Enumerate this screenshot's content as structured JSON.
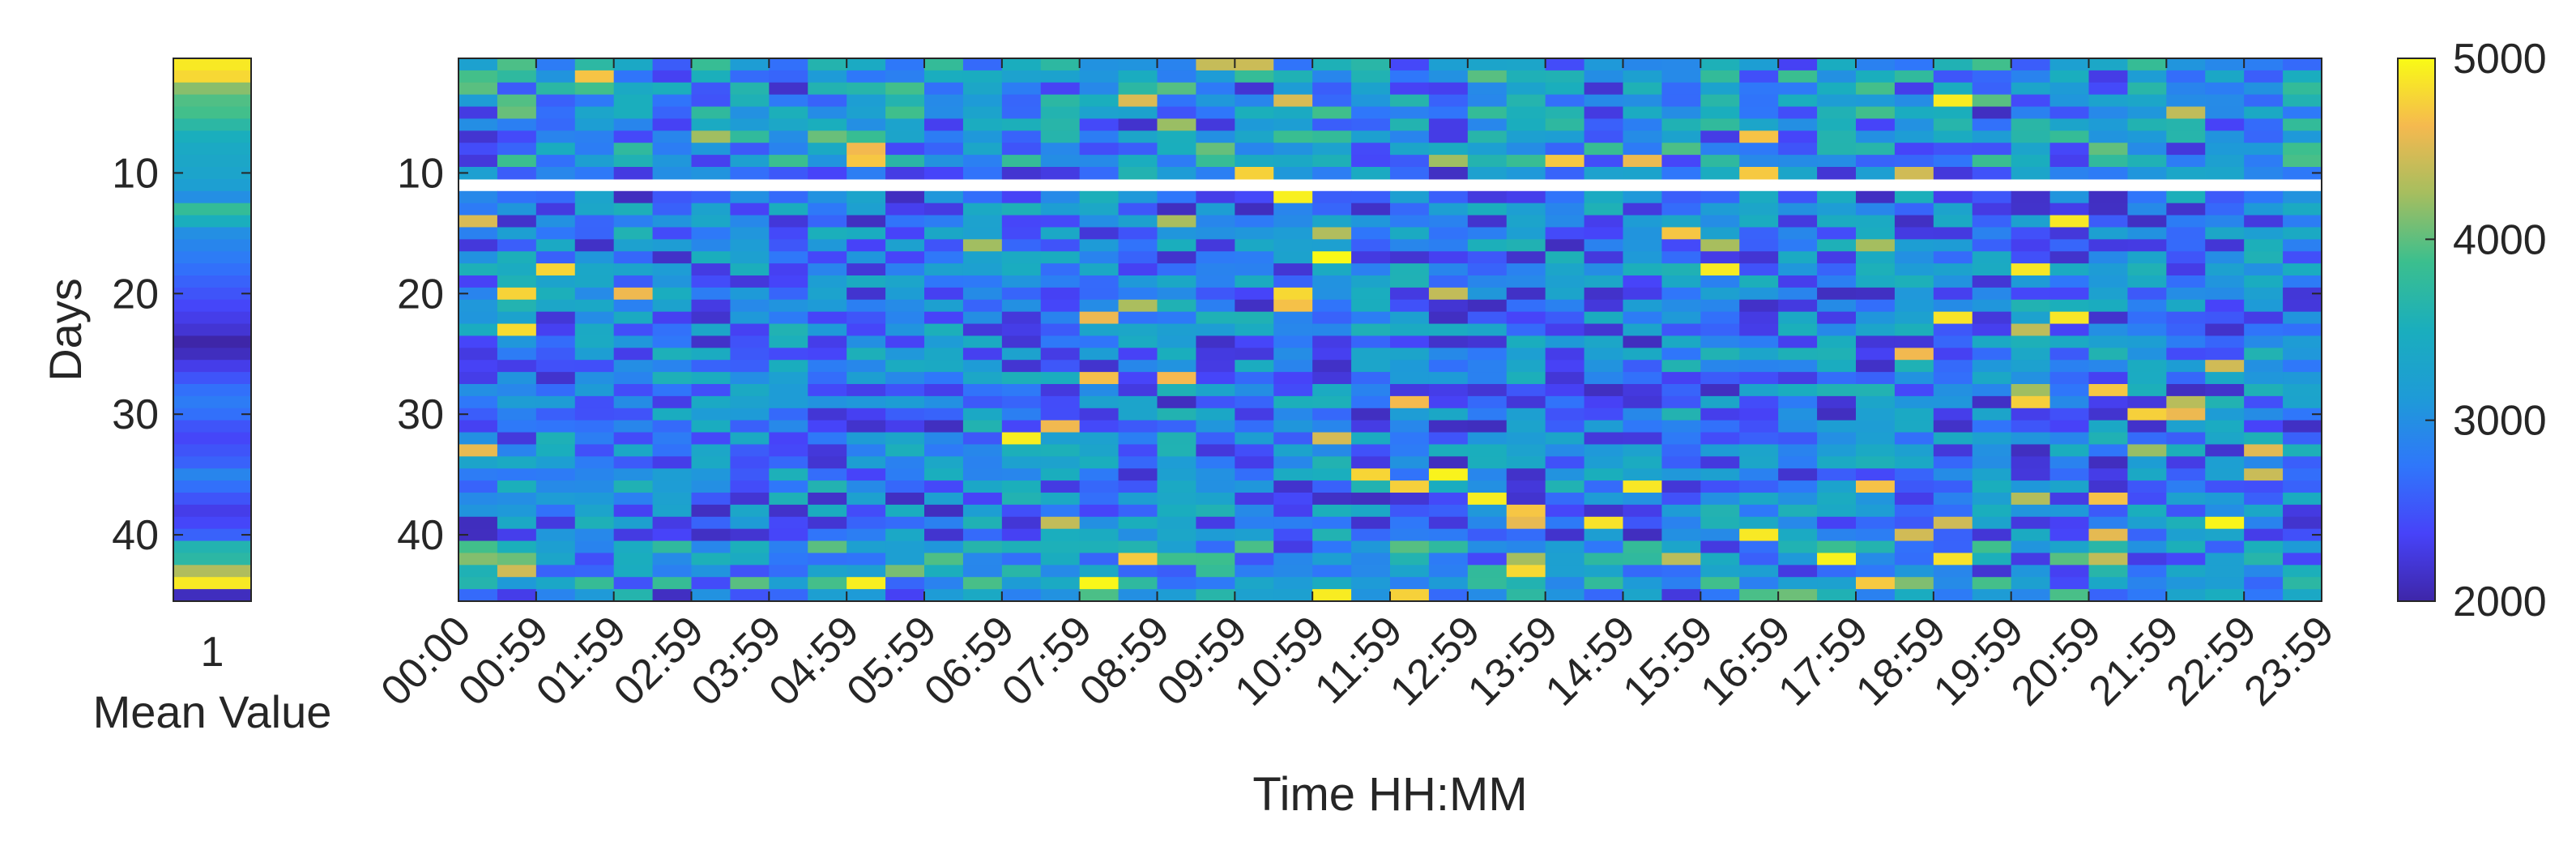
{
  "chart_data": [
    {
      "type": "heatmap",
      "title": "",
      "xlabel": "Mean Value",
      "ylabel": "Days",
      "x_tick_labels": [
        "1"
      ],
      "y_ticks": [
        10,
        20,
        30,
        40
      ],
      "y_range": [
        1,
        45
      ],
      "column_mean_values_estimate": [
        4900,
        4800,
        4150,
        3950,
        3900,
        3700,
        3500,
        3400,
        3350,
        3300,
        3200,
        3000,
        3800,
        3500,
        3000,
        2900,
        2800,
        2700,
        2600,
        2500,
        2400,
        2300,
        2200,
        2000,
        2100,
        2300,
        2500,
        2700,
        2800,
        2700,
        2500,
        2400,
        2500,
        2600,
        2900,
        2700,
        2500,
        2300,
        2400,
        2600,
        3600,
        3700,
        4300,
        4900,
        2100
      ],
      "colormap": [
        "#3e26a8",
        "#4743f9",
        "#2f77fa",
        "#1e9bd7",
        "#1aaebd",
        "#3bbf8e",
        "#a5be5f",
        "#f5b94f",
        "#f9fb15"
      ]
    },
    {
      "type": "heatmap",
      "title": "",
      "xlabel": "Time HH:MM",
      "ylabel": "",
      "x_tick_labels": [
        "00:00",
        "00:59",
        "01:59",
        "02:59",
        "03:59",
        "04:59",
        "05:59",
        "06:59",
        "07:59",
        "08:59",
        "09:59",
        "10:59",
        "11:59",
        "12:59",
        "13:59",
        "14:59",
        "15:59",
        "16:59",
        "17:59",
        "18:59",
        "19:59",
        "20:59",
        "21:59",
        "22:59",
        "23:59"
      ],
      "y_ticks": [
        10,
        20,
        30,
        40
      ],
      "y_range": [
        1,
        45
      ],
      "n_days": 45,
      "n_time_bins": 48,
      "missing_rows": [
        11
      ],
      "color_range": [
        2000,
        5000
      ],
      "colorbar_ticks": [
        2000,
        3000,
        4000,
        5000
      ],
      "typical_range_estimate": [
        2100,
        3600
      ],
      "colormap": [
        "#3e26a8",
        "#4743f9",
        "#2f77fa",
        "#1e9bd7",
        "#1aaebd",
        "#3bbf8e",
        "#a5be5f",
        "#f5b94f",
        "#f9fb15"
      ]
    }
  ]
}
